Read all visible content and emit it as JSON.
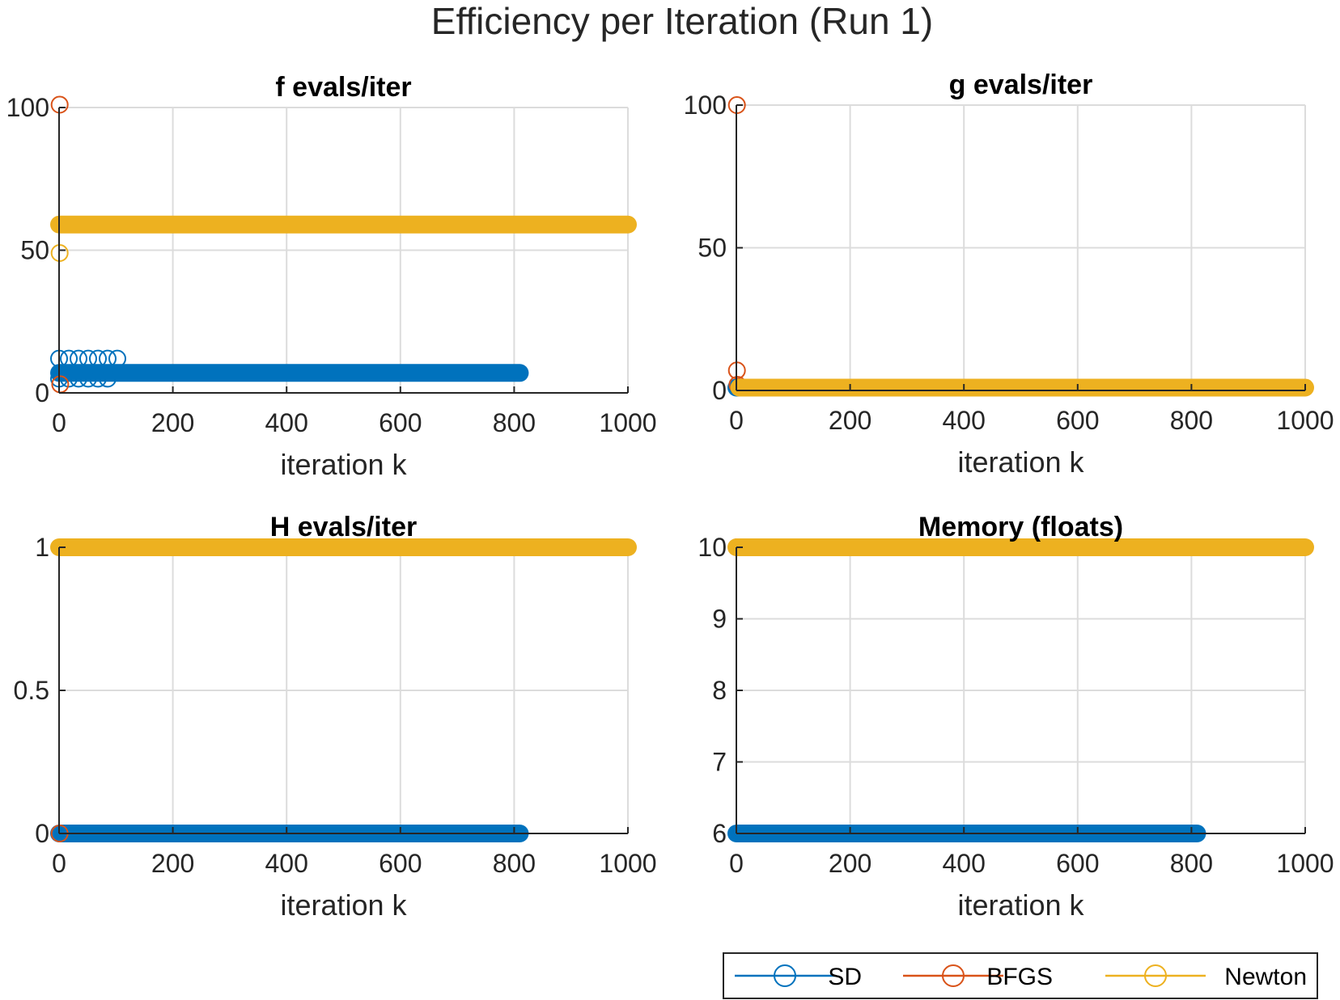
{
  "title": "Efficiency per Iteration (Run 1)",
  "colors": {
    "SD": "#0072BD",
    "BFGS": "#D95319",
    "Newton": "#EDB120",
    "grid": "#dcdcdc",
    "axis": "#262626"
  },
  "legend": {
    "location": "bottom-right",
    "entries": [
      "SD",
      "BFGS",
      "Newton"
    ]
  },
  "chart_data": [
    {
      "type": "scatter",
      "title": "f evals/iter",
      "xlabel": "iteration k",
      "ylabel": "",
      "xlim": [
        0,
        1000
      ],
      "ylim": [
        0,
        100
      ],
      "xticks": [
        0,
        200,
        400,
        600,
        800,
        1000
      ],
      "yticks": [
        0,
        50,
        100
      ],
      "ytick_labels": [
        "0",
        "50",
        "100"
      ],
      "series": [
        {
          "name": "SD",
          "segments": [
            {
              "x_start": 0,
              "x_end": 115,
              "y": 12,
              "style": "open"
            },
            {
              "x_start": 0,
              "x_end": 810,
              "y": 7,
              "style": "filled"
            },
            {
              "x_start": 0,
              "x_end": 100,
              "y": 5,
              "style": "open"
            }
          ],
          "points": []
        },
        {
          "name": "BFGS",
          "segments": [],
          "points": [
            {
              "x": 1,
              "y": 101
            },
            {
              "x": 2,
              "y": 3
            }
          ]
        },
        {
          "name": "Newton",
          "segments": [
            {
              "x_start": 0,
              "x_end": 1000,
              "y": 59,
              "style": "filled"
            }
          ],
          "points": [
            {
              "x": 1,
              "y": 49
            }
          ]
        }
      ]
    },
    {
      "type": "scatter",
      "title": "g evals/iter",
      "xlabel": "iteration k",
      "ylabel": "",
      "xlim": [
        0,
        1000
      ],
      "ylim": [
        0,
        100
      ],
      "xticks": [
        0,
        200,
        400,
        600,
        800,
        1000
      ],
      "yticks": [
        0,
        50,
        100
      ],
      "ytick_labels": [
        "0",
        "50",
        "100"
      ],
      "series": [
        {
          "name": "SD",
          "segments": [
            {
              "x_start": 0,
              "x_end": 35,
              "y": 1,
              "style": "filled"
            }
          ],
          "points": []
        },
        {
          "name": "BFGS",
          "segments": [],
          "points": [
            {
              "x": 1,
              "y": 100
            },
            {
              "x": 1,
              "y": 7
            },
            {
              "x": 2,
              "y": 2
            }
          ]
        },
        {
          "name": "Newton",
          "segments": [
            {
              "x_start": 5,
              "x_end": 1000,
              "y": 1,
              "style": "filled"
            }
          ],
          "points": []
        }
      ]
    },
    {
      "type": "scatter",
      "title": "H evals/iter",
      "xlabel": "iteration k",
      "ylabel": "",
      "xlim": [
        0,
        1000
      ],
      "ylim": [
        0,
        1
      ],
      "xticks": [
        0,
        200,
        400,
        600,
        800,
        1000
      ],
      "yticks": [
        0,
        0.5,
        1
      ],
      "ytick_labels": [
        "0",
        "0.5",
        "1"
      ],
      "series": [
        {
          "name": "SD",
          "segments": [
            {
              "x_start": 0,
              "x_end": 810,
              "y": 0,
              "style": "filled"
            }
          ],
          "points": []
        },
        {
          "name": "BFGS",
          "segments": [],
          "points": [
            {
              "x": 1,
              "y": 0
            }
          ]
        },
        {
          "name": "Newton",
          "segments": [
            {
              "x_start": 0,
              "x_end": 1000,
              "y": 1,
              "style": "filled"
            }
          ],
          "points": []
        }
      ]
    },
    {
      "type": "scatter",
      "title": "Memory (floats)",
      "xlabel": "iteration k",
      "ylabel": "",
      "xlim": [
        0,
        1000
      ],
      "ylim": [
        6,
        10
      ],
      "xticks": [
        0,
        200,
        400,
        600,
        800,
        1000
      ],
      "yticks": [
        6,
        7,
        8,
        9,
        10
      ],
      "ytick_labels": [
        "6",
        "7",
        "8",
        "9",
        "10"
      ],
      "series": [
        {
          "name": "SD",
          "segments": [
            {
              "x_start": 0,
              "x_end": 810,
              "y": 6,
              "style": "filled"
            }
          ],
          "points": []
        },
        {
          "name": "BFGS",
          "segments": [],
          "points": [
            {
              "x": 1,
              "y": 10
            }
          ]
        },
        {
          "name": "Newton",
          "segments": [
            {
              "x_start": 0,
              "x_end": 1000,
              "y": 10,
              "style": "filled"
            }
          ],
          "points": []
        }
      ]
    }
  ]
}
